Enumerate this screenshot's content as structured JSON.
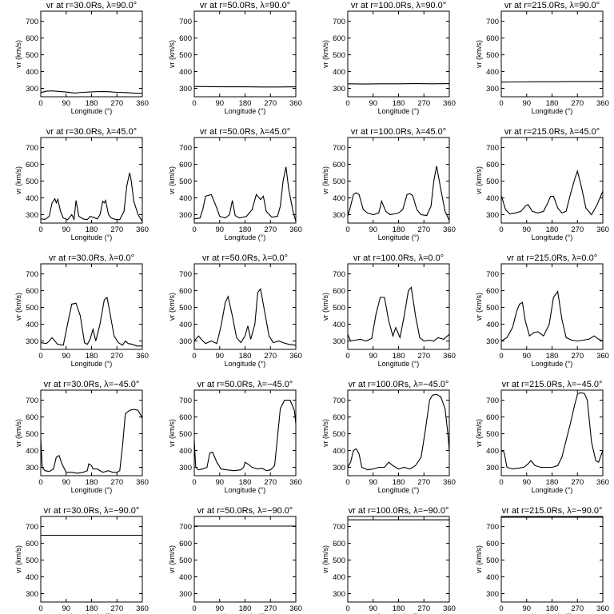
{
  "figure": {
    "xlabel": "Longitude (°)",
    "ylabel": "vr (km/s)"
  },
  "chart_data": [
    {
      "type": "line",
      "title": "vr at r=30.0Rs, λ=90.0°",
      "xlabel": "Longitude (°)",
      "ylabel": "vr (km/s)",
      "xlim": [
        0,
        360
      ],
      "ylim": [
        250,
        760
      ],
      "xticks": [
        0,
        90,
        180,
        270,
        360
      ],
      "yticks": [
        300,
        400,
        500,
        600,
        700
      ],
      "x": [
        0,
        20,
        40,
        60,
        90,
        120,
        150,
        180,
        210,
        240,
        270,
        300,
        330,
        360
      ],
      "y": [
        275,
        283,
        285,
        282,
        278,
        272,
        276,
        279,
        281,
        280,
        276,
        275,
        272,
        270
      ]
    },
    {
      "type": "line",
      "title": "vr at r=50.0Rs, λ=90.0°",
      "xlabel": "Longitude (°)",
      "ylabel": "vr (km/s)",
      "xlim": [
        0,
        360
      ],
      "ylim": [
        250,
        760
      ],
      "xticks": [
        0,
        90,
        180,
        270,
        360
      ],
      "yticks": [
        300,
        400,
        500,
        600,
        700
      ],
      "x": [
        0,
        60,
        120,
        180,
        240,
        300,
        360
      ],
      "y": [
        311,
        310,
        309,
        309,
        308,
        308,
        309
      ]
    },
    {
      "type": "line",
      "title": "vr at r=100.0Rs, λ=90.0°",
      "xlabel": "Longitude (°)",
      "ylabel": "vr (km/s)",
      "xlim": [
        0,
        360
      ],
      "ylim": [
        250,
        760
      ],
      "xticks": [
        0,
        90,
        180,
        270,
        360
      ],
      "yticks": [
        300,
        400,
        500,
        600,
        700
      ],
      "x": [
        0,
        60,
        120,
        180,
        240,
        300,
        360
      ],
      "y": [
        327,
        326,
        327,
        327,
        328,
        327,
        328
      ]
    },
    {
      "type": "line",
      "title": "vr at r=215.0Rs, λ=90.0°",
      "xlabel": "Longitude (°)",
      "ylabel": "vr (km/s)",
      "xlim": [
        0,
        360
      ],
      "ylim": [
        250,
        760
      ],
      "xticks": [
        0,
        90,
        180,
        270,
        360
      ],
      "yticks": [
        300,
        400,
        500,
        600,
        700
      ],
      "x": [
        0,
        60,
        120,
        180,
        240,
        300,
        360
      ],
      "y": [
        337,
        338,
        339,
        339,
        340,
        340,
        341
      ]
    },
    {
      "type": "line",
      "title": "vr at r=30.0Rs, λ=45.0°",
      "xlabel": "Longitude (°)",
      "ylabel": "vr (km/s)",
      "xlim": [
        0,
        360
      ],
      "ylim": [
        250,
        760
      ],
      "xticks": [
        0,
        90,
        180,
        270,
        360
      ],
      "yticks": [
        300,
        400,
        500,
        600,
        700
      ],
      "x": [
        0,
        15,
        30,
        40,
        50,
        55,
        60,
        70,
        80,
        95,
        110,
        118,
        125,
        135,
        150,
        165,
        175,
        185,
        200,
        210,
        220,
        225,
        230,
        240,
        250,
        265,
        280,
        295,
        305,
        315,
        320,
        330,
        345,
        360
      ],
      "y": [
        275,
        272,
        290,
        370,
        395,
        370,
        392,
        320,
        280,
        270,
        300,
        272,
        385,
        290,
        275,
        270,
        290,
        285,
        275,
        300,
        380,
        370,
        385,
        300,
        280,
        272,
        270,
        320,
        470,
        550,
        510,
        380,
        300,
        260
      ]
    },
    {
      "type": "line",
      "title": "vr at r=50.0Rs, λ=45.0°",
      "xlabel": "Longitude (°)",
      "ylabel": "vr (km/s)",
      "xlim": [
        0,
        360
      ],
      "ylim": [
        250,
        760
      ],
      "xticks": [
        0,
        90,
        180,
        270,
        360
      ],
      "yticks": [
        300,
        400,
        500,
        600,
        700
      ],
      "x": [
        0,
        20,
        30,
        40,
        50,
        60,
        75,
        90,
        110,
        125,
        135,
        145,
        160,
        185,
        205,
        220,
        235,
        245,
        255,
        275,
        295,
        305,
        315,
        325,
        335,
        350,
        360
      ],
      "y": [
        275,
        280,
        330,
        410,
        415,
        420,
        360,
        290,
        280,
        300,
        385,
        295,
        280,
        290,
        330,
        420,
        390,
        410,
        320,
        285,
        290,
        350,
        500,
        585,
        450,
        320,
        260
      ]
    },
    {
      "type": "line",
      "title": "vr at r=100.0Rs, λ=45.0°",
      "xlabel": "Longitude (°)",
      "ylabel": "vr (km/s)",
      "xlim": [
        0,
        360
      ],
      "ylim": [
        250,
        760
      ],
      "xticks": [
        0,
        90,
        180,
        270,
        360
      ],
      "yticks": [
        300,
        400,
        500,
        600,
        700
      ],
      "x": [
        0,
        10,
        20,
        30,
        40,
        55,
        70,
        90,
        110,
        120,
        135,
        150,
        165,
        180,
        195,
        210,
        220,
        230,
        245,
        260,
        280,
        295,
        305,
        315,
        330,
        345,
        360
      ],
      "y": [
        290,
        350,
        420,
        430,
        420,
        330,
        310,
        300,
        310,
        380,
        320,
        300,
        305,
        310,
        330,
        420,
        425,
        415,
        330,
        300,
        295,
        350,
        500,
        590,
        450,
        320,
        265
      ]
    },
    {
      "type": "line",
      "title": "vr at r=215.0Rs, λ=45.0°",
      "xlabel": "Longitude (°)",
      "ylabel": "vr (km/s)",
      "xlim": [
        0,
        360
      ],
      "ylim": [
        250,
        760
      ],
      "xticks": [
        0,
        90,
        180,
        270,
        360
      ],
      "yticks": [
        300,
        400,
        500,
        600,
        700
      ],
      "x": [
        0,
        15,
        30,
        50,
        70,
        85,
        95,
        110,
        130,
        150,
        165,
        175,
        185,
        200,
        215,
        230,
        245,
        260,
        270,
        285,
        300,
        320,
        340,
        360
      ],
      "y": [
        415,
        330,
        305,
        310,
        320,
        350,
        360,
        320,
        310,
        320,
        370,
        410,
        410,
        340,
        310,
        320,
        420,
        510,
        560,
        460,
        340,
        300,
        360,
        440
      ]
    },
    {
      "type": "line",
      "title": "vr at r=30.0Rs, λ=0.0°",
      "xlabel": "Longitude (°)",
      "ylabel": "vr (km/s)",
      "xlim": [
        0,
        360
      ],
      "ylim": [
        250,
        760
      ],
      "xticks": [
        0,
        90,
        180,
        270,
        360
      ],
      "yticks": [
        300,
        400,
        500,
        600,
        700
      ],
      "x": [
        0,
        20,
        30,
        40,
        60,
        80,
        95,
        110,
        125,
        140,
        155,
        165,
        175,
        185,
        195,
        210,
        225,
        235,
        245,
        260,
        275,
        290,
        300,
        310,
        325,
        340,
        360
      ],
      "y": [
        290,
        285,
        300,
        320,
        280,
        275,
        400,
        520,
        525,
        450,
        290,
        280,
        310,
        370,
        300,
        400,
        545,
        560,
        470,
        330,
        290,
        275,
        300,
        285,
        280,
        270,
        270
      ]
    },
    {
      "type": "line",
      "title": "vr at r=50.0Rs, λ=0.0°",
      "xlabel": "Longitude (°)",
      "ylabel": "vr (km/s)",
      "xlim": [
        0,
        360
      ],
      "ylim": [
        250,
        760
      ],
      "xticks": [
        0,
        90,
        180,
        270,
        360
      ],
      "yticks": [
        300,
        400,
        500,
        600,
        700
      ],
      "x": [
        0,
        15,
        25,
        40,
        60,
        80,
        95,
        110,
        120,
        135,
        150,
        165,
        180,
        190,
        200,
        215,
        225,
        235,
        250,
        265,
        280,
        300,
        315,
        335,
        360
      ],
      "y": [
        300,
        330,
        310,
        285,
        300,
        285,
        390,
        530,
        565,
        450,
        320,
        290,
        330,
        390,
        310,
        400,
        590,
        610,
        470,
        330,
        290,
        300,
        290,
        280,
        275
      ]
    },
    {
      "type": "line",
      "title": "vr at r=100.0Rs, λ=0.0°",
      "xlabel": "Longitude (°)",
      "ylabel": "vr (km/s)",
      "xlim": [
        0,
        360
      ],
      "ylim": [
        250,
        760
      ],
      "xticks": [
        0,
        90,
        180,
        270,
        360
      ],
      "yticks": [
        300,
        400,
        500,
        600,
        700
      ],
      "x": [
        0,
        10,
        25,
        45,
        65,
        85,
        100,
        115,
        130,
        145,
        160,
        170,
        185,
        200,
        215,
        225,
        240,
        255,
        270,
        290,
        305,
        320,
        340,
        360
      ],
      "y": [
        340,
        300,
        305,
        310,
        300,
        315,
        460,
        560,
        560,
        420,
        330,
        380,
        320,
        450,
        600,
        620,
        450,
        320,
        300,
        305,
        300,
        320,
        310,
        340
      ]
    },
    {
      "type": "line",
      "title": "vr at r=215.0Rs, λ=0.0°",
      "xlabel": "Longitude (°)",
      "ylabel": "vr (km/s)",
      "xlim": [
        0,
        360
      ],
      "ylim": [
        250,
        760
      ],
      "xticks": [
        0,
        90,
        180,
        270,
        360
      ],
      "yticks": [
        300,
        400,
        500,
        600,
        700
      ],
      "x": [
        0,
        20,
        40,
        55,
        65,
        75,
        85,
        100,
        115,
        130,
        150,
        170,
        185,
        200,
        215,
        230,
        250,
        270,
        290,
        310,
        330,
        345,
        360
      ],
      "y": [
        300,
        320,
        380,
        480,
        520,
        530,
        420,
        330,
        350,
        355,
        330,
        400,
        560,
        595,
        430,
        320,
        305,
        300,
        305,
        310,
        330,
        310,
        300
      ]
    },
    {
      "type": "line",
      "title": "vr at r=30.0Rs, λ=−45.0°",
      "xlabel": "Longitude (°)",
      "ylabel": "vr (km/s)",
      "xlim": [
        0,
        360
      ],
      "ylim": [
        250,
        760
      ],
      "xticks": [
        0,
        90,
        180,
        270,
        360
      ],
      "yticks": [
        300,
        400,
        500,
        600,
        700
      ],
      "x": [
        0,
        5,
        15,
        30,
        45,
        55,
        65,
        75,
        90,
        110,
        130,
        150,
        165,
        170,
        180,
        185,
        200,
        220,
        240,
        255,
        270,
        280,
        290,
        300,
        315,
        330,
        345,
        355,
        360
      ],
      "y": [
        470,
        300,
        280,
        275,
        290,
        360,
        370,
        320,
        270,
        270,
        265,
        270,
        280,
        320,
        310,
        290,
        290,
        270,
        280,
        270,
        270,
        280,
        430,
        620,
        640,
        645,
        640,
        610,
        590
      ]
    },
    {
      "type": "line",
      "title": "vr at r=50.0Rs, λ=−45.0°",
      "xlabel": "Longitude (°)",
      "ylabel": "vr (km/s)",
      "xlim": [
        0,
        360
      ],
      "ylim": [
        250,
        760
      ],
      "xticks": [
        0,
        90,
        180,
        270,
        360
      ],
      "yticks": [
        300,
        400,
        500,
        600,
        700
      ],
      "x": [
        0,
        5,
        15,
        30,
        45,
        55,
        65,
        80,
        95,
        115,
        140,
        165,
        175,
        180,
        190,
        205,
        225,
        240,
        255,
        270,
        285,
        295,
        305,
        320,
        340,
        355,
        360
      ],
      "y": [
        460,
        300,
        285,
        290,
        300,
        385,
        390,
        330,
        290,
        285,
        280,
        285,
        300,
        330,
        320,
        300,
        290,
        295,
        280,
        285,
        310,
        480,
        650,
        700,
        700,
        640,
        560
      ]
    },
    {
      "type": "line",
      "title": "vr at r=100.0Rs, λ=−45.0°",
      "xlabel": "Longitude (°)",
      "ylabel": "vr (km/s)",
      "xlim": [
        0,
        360
      ],
      "ylim": [
        250,
        760
      ],
      "xticks": [
        0,
        90,
        180,
        270,
        360
      ],
      "yticks": [
        300,
        400,
        500,
        600,
        700
      ],
      "x": [
        0,
        10,
        20,
        30,
        40,
        50,
        70,
        90,
        110,
        130,
        145,
        160,
        180,
        200,
        220,
        240,
        260,
        275,
        290,
        300,
        315,
        330,
        345,
        355,
        360
      ],
      "y": [
        300,
        330,
        400,
        410,
        380,
        300,
        285,
        290,
        300,
        300,
        330,
        310,
        290,
        300,
        290,
        310,
        360,
        520,
        700,
        730,
        735,
        720,
        650,
        500,
        400
      ]
    },
    {
      "type": "line",
      "title": "vr at r=215.0Rs, λ=−45.0°",
      "xlabel": "Longitude (°)",
      "ylabel": "vr (km/s)",
      "xlim": [
        0,
        360
      ],
      "ylim": [
        250,
        760
      ],
      "xticks": [
        0,
        90,
        180,
        270,
        360
      ],
      "yticks": [
        300,
        400,
        500,
        600,
        700
      ],
      "x": [
        0,
        10,
        20,
        40,
        60,
        80,
        95,
        105,
        120,
        140,
        160,
        180,
        200,
        215,
        230,
        245,
        260,
        270,
        280,
        295,
        305,
        320,
        335,
        345,
        360
      ],
      "y": [
        400,
        390,
        300,
        290,
        295,
        300,
        320,
        340,
        310,
        300,
        300,
        300,
        310,
        360,
        460,
        560,
        670,
        735,
        745,
        740,
        700,
        450,
        340,
        330,
        400
      ]
    },
    {
      "type": "line",
      "title": "vr at r=30.0Rs, λ=−90.0°",
      "xlabel": "Longitude (°)",
      "ylabel": "vr (km/s)",
      "xlim": [
        0,
        360
      ],
      "ylim": [
        250,
        760
      ],
      "xticks": [
        0,
        90,
        180,
        270,
        360
      ],
      "yticks": [
        300,
        400,
        500,
        600,
        700
      ],
      "x": [
        0,
        90,
        180,
        270,
        360
      ],
      "y": [
        648,
        648,
        648,
        648,
        648
      ]
    },
    {
      "type": "line",
      "title": "vr at r=50.0Rs, λ=−90.0°",
      "xlabel": "Longitude (°)",
      "ylabel": "vr (km/s)",
      "xlim": [
        0,
        360
      ],
      "ylim": [
        250,
        760
      ],
      "xticks": [
        0,
        90,
        180,
        270,
        360
      ],
      "yticks": [
        300,
        400,
        500,
        600,
        700
      ],
      "x": [
        0,
        90,
        180,
        270,
        360
      ],
      "y": [
        703,
        703,
        703,
        703,
        703
      ]
    },
    {
      "type": "line",
      "title": "vr at r=100.0Rs, λ=−90.0°",
      "xlabel": "Longitude (°)",
      "ylabel": "vr (km/s)",
      "xlim": [
        0,
        360
      ],
      "ylim": [
        250,
        760
      ],
      "xticks": [
        0,
        90,
        180,
        270,
        360
      ],
      "yticks": [
        300,
        400,
        500,
        600,
        700
      ],
      "x": [
        0,
        90,
        180,
        270,
        360
      ],
      "y": [
        740,
        740,
        740,
        740,
        740
      ]
    },
    {
      "type": "line",
      "title": "vr at r=215.0Rs, λ=−90.0°",
      "xlabel": "Longitude (°)",
      "ylabel": "vr (km/s)",
      "xlim": [
        0,
        360
      ],
      "ylim": [
        250,
        760
      ],
      "xticks": [
        0,
        90,
        180,
        270,
        360
      ],
      "yticks": [
        300,
        400,
        500,
        600,
        700
      ],
      "x": [
        0,
        90,
        180,
        270,
        360
      ],
      "y": [
        755,
        755,
        755,
        755,
        755
      ]
    }
  ]
}
